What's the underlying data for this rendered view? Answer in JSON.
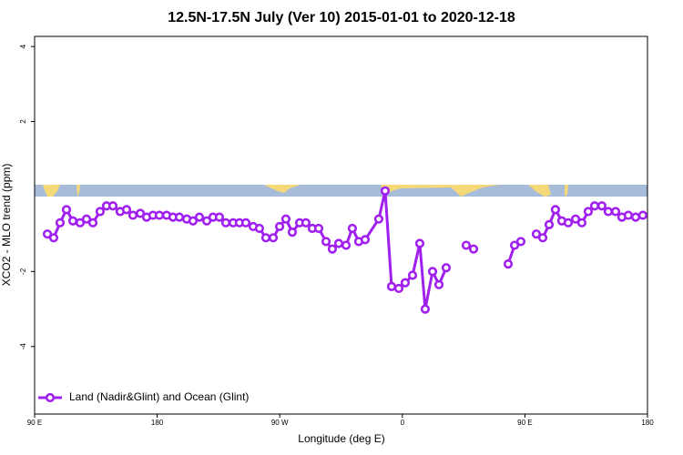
{
  "chart_data": {
    "type": "line",
    "title": "12.5N-17.5N July (Ver 10)   2015-01-01 to 2020-12-18",
    "x_label": "Longitude (deg E)",
    "y_label": "XCO2 - MLO trend (ppm)",
    "x": [
      99.4,
      104.0,
      108.7,
      113.4,
      118.1,
      123.4,
      128.1,
      132.8,
      138.1,
      142.8,
      147.5,
      152.8,
      157.5,
      162.2,
      167.6,
      172.2,
      176.9,
      181.6,
      186.9,
      191.6,
      196.3,
      201.7,
      206.3,
      211.0,
      216.4,
      221.0,
      225.7,
      230.4,
      235.8,
      240.4,
      245.1,
      250.5,
      255.1,
      259.8,
      265.2,
      269.9,
      274.5,
      279.2,
      284.6,
      289.2,
      293.9,
      298.6,
      304.0,
      308.6,
      313.3,
      318.7,
      323.3,
      328.0,
      332.7,
      342.7,
      347.4,
      352.1,
      357.4,
      362.1,
      367.5,
      372.8,
      376.8,
      382.2,
      386.9,
      392.2,
      397.0,
      406.9,
      412.3,
      420.0,
      437.7,
      442.4,
      447.0,
      452.0,
      458.4,
      463.1,
      467.8,
      472.4,
      477.1,
      481.8,
      487.2,
      491.8,
      496.5,
      501.2,
      506.5,
      511.2,
      516.6,
      521.2,
      525.9,
      531.3,
      536.6
    ],
    "series": [
      {
        "name": "Land (Nadir&Glint) and Ocean (Glint)",
        "color": "#a020f0",
        "values": [
          -1.0,
          -1.1,
          -0.7,
          -0.35,
          -0.65,
          -0.7,
          -0.6,
          -0.7,
          -0.4,
          -0.25,
          -0.25,
          -0.4,
          -0.35,
          -0.5,
          -0.45,
          -0.55,
          -0.5,
          -0.5,
          -0.5,
          -0.55,
          -0.55,
          -0.6,
          -0.65,
          -0.55,
          -0.65,
          -0.55,
          -0.55,
          -0.7,
          -0.7,
          -0.7,
          -0.7,
          -0.8,
          -0.85,
          -1.1,
          -1.1,
          -0.8,
          -0.6,
          -0.95,
          -0.7,
          -0.7,
          -0.85,
          -0.85,
          -1.2,
          -1.4,
          -1.25,
          -1.3,
          -0.85,
          -1.2,
          -1.15,
          -0.6,
          0.15,
          -2.4,
          -2.45,
          -2.3,
          -2.1,
          -1.25,
          -3.0,
          -2.0,
          -2.35,
          -1.9,
          null,
          -1.3,
          -1.4,
          null,
          -1.8,
          -1.3,
          -1.2,
          null,
          -1.0,
          -1.1,
          -0.75,
          -0.35,
          -0.65,
          -0.7,
          -0.6,
          -0.7,
          -0.4,
          -0.25,
          -0.25,
          -0.4,
          -0.4,
          -0.55,
          -0.5,
          -0.55,
          -0.5
        ]
      }
    ],
    "xlim": [
      90,
      540
    ],
    "xticks": [
      {
        "value": 90,
        "label": "90 E"
      },
      180,
      {
        "value": 270,
        "label": "90 W"
      },
      {
        "value": 360,
        "label": "0"
      },
      {
        "value": 450,
        "label": "90 E"
      },
      {
        "value": 540,
        "label": "180"
      }
    ],
    "ylim": [
      -5.8,
      4.27
    ],
    "yticks": [
      -4,
      -2,
      2,
      4
    ],
    "legend": "bottomleft"
  }
}
